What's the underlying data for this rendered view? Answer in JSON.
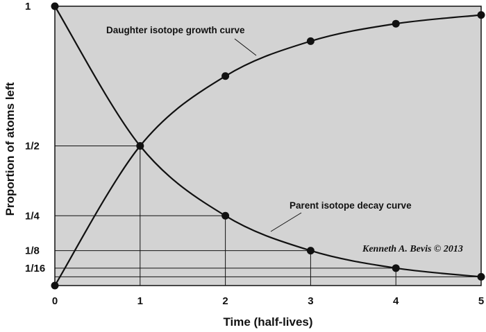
{
  "chart_data": {
    "type": "line",
    "xlabel": "Time (half-lives)",
    "ylabel": "Proportion of atoms left",
    "xlim": [
      0,
      5
    ],
    "ylim": [
      0,
      1
    ],
    "x_ticks": [
      0,
      1,
      2,
      3,
      4,
      5
    ],
    "x_tick_labels": [
      "0",
      "1",
      "2",
      "3",
      "4",
      "5"
    ],
    "y_ticks": [
      0.0625,
      0.125,
      0.25,
      0.5,
      1
    ],
    "y_tick_labels": [
      "1/16",
      "1/8",
      "1/4",
      "1/2",
      "1"
    ],
    "plot_background": "#d3d3d3",
    "line_color": "#111111",
    "series": [
      {
        "name": "Parent isotope decay curve",
        "x": [
          0,
          1,
          2,
          3,
          4,
          5
        ],
        "y": [
          1,
          0.5,
          0.25,
          0.125,
          0.0625,
          0.03125
        ]
      },
      {
        "name": "Daughter isotope growth curve",
        "x": [
          0,
          1,
          2,
          3,
          4,
          5
        ],
        "y": [
          0,
          0.5,
          0.75,
          0.875,
          0.9375,
          0.96875
        ]
      }
    ],
    "reference_lines_x": [
      1,
      2,
      3,
      4
    ],
    "reference_lines_y": [
      0.5,
      0.25,
      0.125,
      0.0625,
      0.03125
    ],
    "annotations": [
      {
        "text": "Daughter isotope growth curve",
        "points_to": "Daughter isotope growth curve"
      },
      {
        "text": "Parent isotope decay curve",
        "points_to": "Parent isotope decay curve"
      }
    ],
    "credit": "Kenneth A. Bevis © 2013"
  }
}
